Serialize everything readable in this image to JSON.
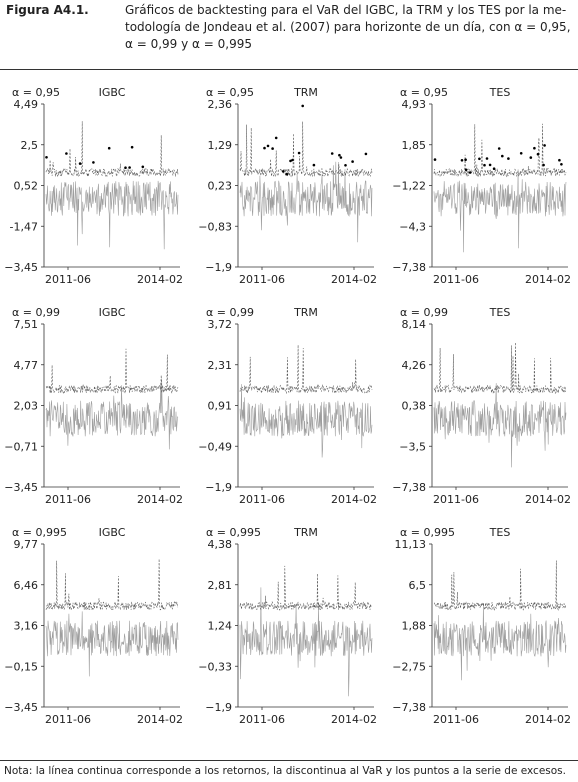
{
  "figure": {
    "label": "Figura A4.1.",
    "caption_lines": [
      "Gráficos de backtesting para el VaR del IGBC, la TRM y los TES por la me-",
      "todología de Jondeau et al. (2007) para horizonte de un día, con α = 0,95,",
      "α = 0,99 y α = 0,995"
    ],
    "note": "Nota: la línea continua corresponde a los retornos, la discontinua al VaR y los puntos a la serie de excesos."
  },
  "colors": {
    "returns": "#9e9e9e",
    "var": "#555555",
    "exceedances": "#000000",
    "axis": "#333333"
  },
  "chart_data": [
    {
      "type": "line",
      "title": "IGBC",
      "alpha_label": "α = 0,95",
      "yticks": [
        "4,49",
        "2,5",
        "0,52",
        "-1,47",
        "−3,45"
      ],
      "ylim": [
        -3.45,
        4.49
      ],
      "xticks": [
        "2011-06",
        "2014-02"
      ],
      "x_range": [
        "2011-06",
        "2014-02"
      ],
      "series": []
    },
    {
      "type": "line",
      "title": "TRM",
      "alpha_label": "α = 0,95",
      "yticks": [
        "2,36",
        "1,29",
        "0,23",
        "−0,83",
        "−1,9"
      ],
      "ylim": [
        -1.9,
        2.36
      ],
      "xticks": [
        "2011-06",
        "2014-02"
      ],
      "x_range": [
        "2011-06",
        "2014-02"
      ],
      "series": []
    },
    {
      "type": "line",
      "title": "TES",
      "alpha_label": "α = 0,95",
      "yticks": [
        "4,93",
        "1,85",
        "−1,22",
        "−4,3",
        "−7,38"
      ],
      "ylim": [
        -7.38,
        4.93
      ],
      "xticks": [
        "2011-06",
        "2014-02"
      ],
      "x_range": [
        "2011-06",
        "2014-02"
      ],
      "series": []
    },
    {
      "type": "line",
      "title": "IGBC",
      "alpha_label": "α = 0,99",
      "yticks": [
        "7,51",
        "4,77",
        "2,03",
        "−0,71",
        "−3,45"
      ],
      "ylim": [
        -3.45,
        7.51
      ],
      "xticks": [
        "2011-06",
        "2014-02"
      ],
      "x_range": [
        "2011-06",
        "2014-02"
      ],
      "series": []
    },
    {
      "type": "line",
      "title": "TRM",
      "alpha_label": "α = 0,99",
      "yticks": [
        "3,72",
        "2,31",
        "0,91",
        "−0,49",
        "−1,9"
      ],
      "ylim": [
        -1.9,
        3.72
      ],
      "xticks": [
        "2011-06",
        "2014-02"
      ],
      "x_range": [
        "2011-06",
        "2014-02"
      ],
      "series": []
    },
    {
      "type": "line",
      "title": "TES",
      "alpha_label": "α = 0,99",
      "yticks": [
        "8,14",
        "4,26",
        "0,38",
        "−3,5",
        "−7,38"
      ],
      "ylim": [
        -7.38,
        8.14
      ],
      "xticks": [
        "2011-06",
        "2014-02"
      ],
      "x_range": [
        "2011-06",
        "2014-02"
      ],
      "series": []
    },
    {
      "type": "line",
      "title": "IGBC",
      "alpha_label": "α = 0,995",
      "yticks": [
        "9,77",
        "6,46",
        "3,16",
        "−0,15",
        "−3,45"
      ],
      "ylim": [
        -3.45,
        9.77
      ],
      "xticks": [
        "2011-06",
        "2014-02"
      ],
      "x_range": [
        "2011-06",
        "2014-02"
      ],
      "series": []
    },
    {
      "type": "line",
      "title": "TRM",
      "alpha_label": "α = 0,995",
      "yticks": [
        "4,38",
        "2,81",
        "1,24",
        "−0,33",
        "−1,9"
      ],
      "ylim": [
        -1.9,
        4.38
      ],
      "xticks": [
        "2011-06",
        "2014-02"
      ],
      "x_range": [
        "2011-06",
        "2014-02"
      ],
      "series": []
    },
    {
      "type": "line",
      "title": "TES",
      "alpha_label": "α = 0,995",
      "yticks": [
        "11,13",
        "6,5",
        "1,88",
        "−2,75",
        "−7,38"
      ],
      "ylim": [
        -7.38,
        11.13
      ],
      "xticks": [
        "2011-06",
        "2014-02"
      ],
      "x_range": [
        "2011-06",
        "2014-02"
      ],
      "series": []
    }
  ]
}
